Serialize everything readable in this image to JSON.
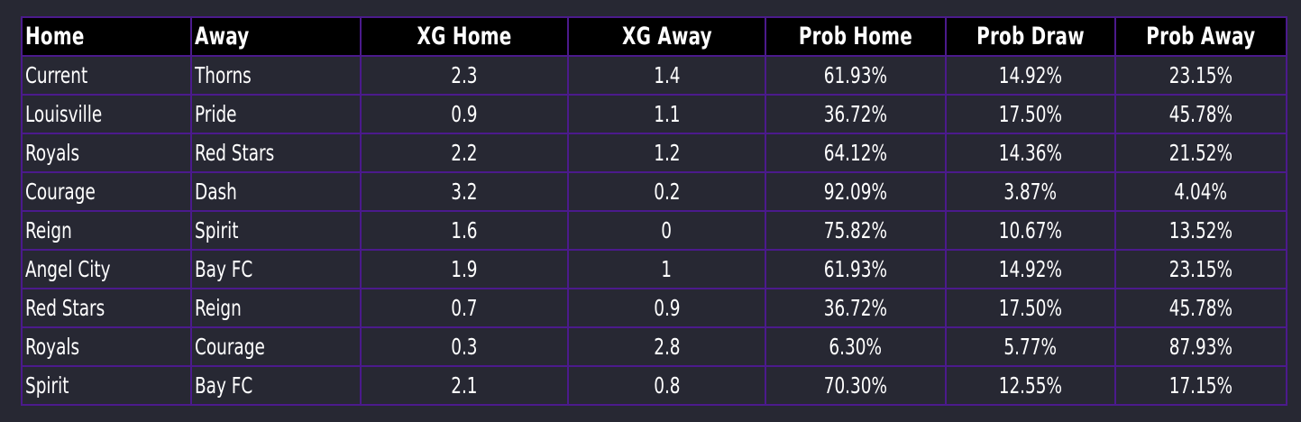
{
  "table": {
    "headers": [
      "Home",
      "Away",
      "XG Home",
      "XG Away",
      "Prob Home",
      "Prob Draw",
      "Prob Away"
    ],
    "rows": [
      [
        "Current",
        "Thorns",
        "2.3",
        "1.4",
        "61.93%",
        "14.92%",
        "23.15%"
      ],
      [
        "Louisville",
        "Pride",
        "0.9",
        "1.1",
        "36.72%",
        "17.50%",
        "45.78%"
      ],
      [
        "Royals",
        "Red Stars",
        "2.2",
        "1.2",
        "64.12%",
        "14.36%",
        "21.52%"
      ],
      [
        "Courage",
        "Dash",
        "3.2",
        "0.2",
        "92.09%",
        "3.87%",
        "4.04%"
      ],
      [
        "Reign",
        "Spirit",
        "1.6",
        "0",
        "75.82%",
        "10.67%",
        "13.52%"
      ],
      [
        "Angel City",
        "Bay FC",
        "1.9",
        "1",
        "61.93%",
        "14.92%",
        "23.15%"
      ],
      [
        "Red Stars",
        "Reign",
        "0.7",
        "0.9",
        "36.72%",
        "17.50%",
        "45.78%"
      ],
      [
        "Royals",
        "Courage",
        "0.3",
        "2.8",
        "6.30%",
        "5.77%",
        "87.93%"
      ],
      [
        "Spirit",
        "Bay FC",
        "2.1",
        "0.8",
        "70.30%",
        "12.55%",
        "17.15%"
      ]
    ]
  },
  "colors": {
    "background": "#272833",
    "header_background": "#000000",
    "border": "#4b1a8c",
    "text": "#ffffff"
  }
}
